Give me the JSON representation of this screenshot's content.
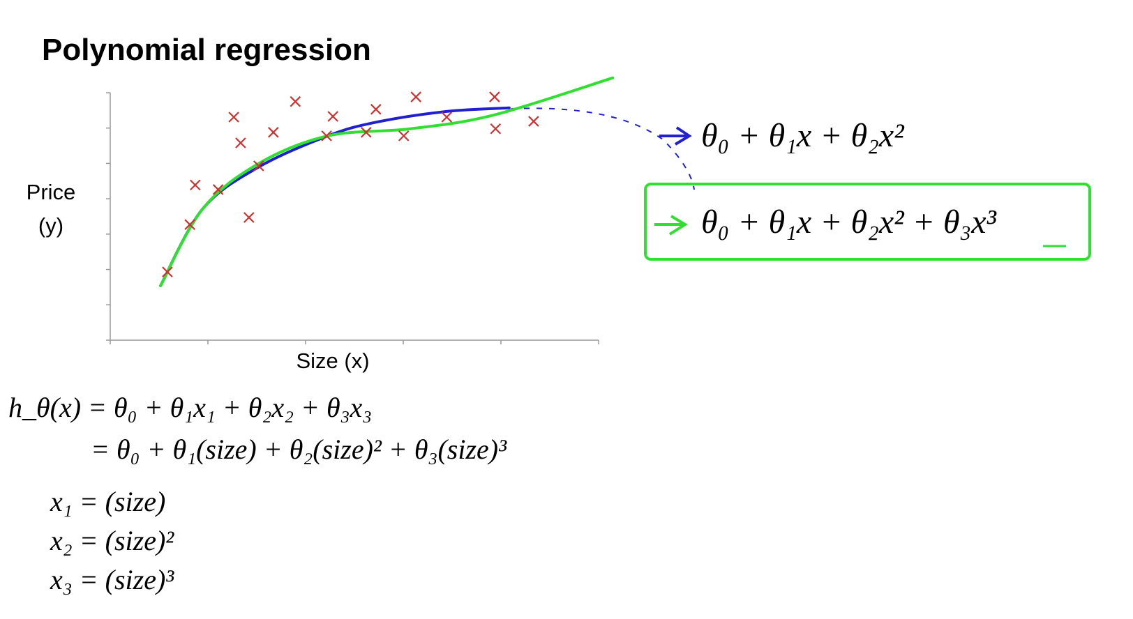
{
  "title": "Polynomial regression",
  "chart_data": {
    "type": "scatter",
    "xlabel": "Size (x)",
    "ylabel": [
      "Price",
      "(y)"
    ],
    "x": [
      1.17,
      1.63,
      1.74,
      2.21,
      2.53,
      2.67,
      2.84,
      3.04,
      3.34,
      3.79,
      4.43,
      4.56,
      5.24,
      5.44,
      6.01,
      6.26,
      6.89,
      7.87,
      7.89,
      8.67
    ],
    "values": [
      1.93,
      3.27,
      4.39,
      4.26,
      6.31,
      5.58,
      3.47,
      4.93,
      5.88,
      6.75,
      5.78,
      6.33,
      5.88,
      6.53,
      5.78,
      6.88,
      6.31,
      6.88,
      5.98,
      6.19
    ],
    "color": "#d03030",
    "fits": [
      {
        "color": "#2020d0",
        "x": [
          1.03,
          1.89,
          3.03,
          4.46,
          5.46,
          6.89,
          8.17
        ],
        "values": [
          1.54,
          3.71,
          4.89,
          5.78,
          6.17,
          6.47,
          6.57
        ]
      },
      {
        "color": "#30e030",
        "x": [
          1.03,
          1.89,
          3.03,
          4.46,
          6.15,
          7.86,
          10.29
        ],
        "values": [
          1.54,
          3.71,
          4.99,
          5.78,
          5.98,
          6.37,
          7.42
        ]
      }
    ],
    "xlim": [
      0,
      10
    ],
    "ylim": [
      0,
      7
    ],
    "xticks": [
      0,
      2,
      4,
      6,
      8,
      10
    ],
    "yticks": [
      0,
      1,
      2,
      3,
      4,
      5,
      6,
      7
    ]
  },
  "models": [
    "θ₀ + θ₁x + θ₂x²",
    "θ₀ + θ₁x + θ₂x² + θ₃x³"
  ],
  "hypothesis": [
    "h_θ(x) = θ₀ + θ₁x₁ + θ₂x₂ + θ₃x₃",
    "= θ₀ + θ₁(size) + θ₂(size)² + θ₃(size)³"
  ],
  "features": [
    "x₁ = (size)",
    "x₂ = (size)²",
    "x₃ = (size)³"
  ]
}
